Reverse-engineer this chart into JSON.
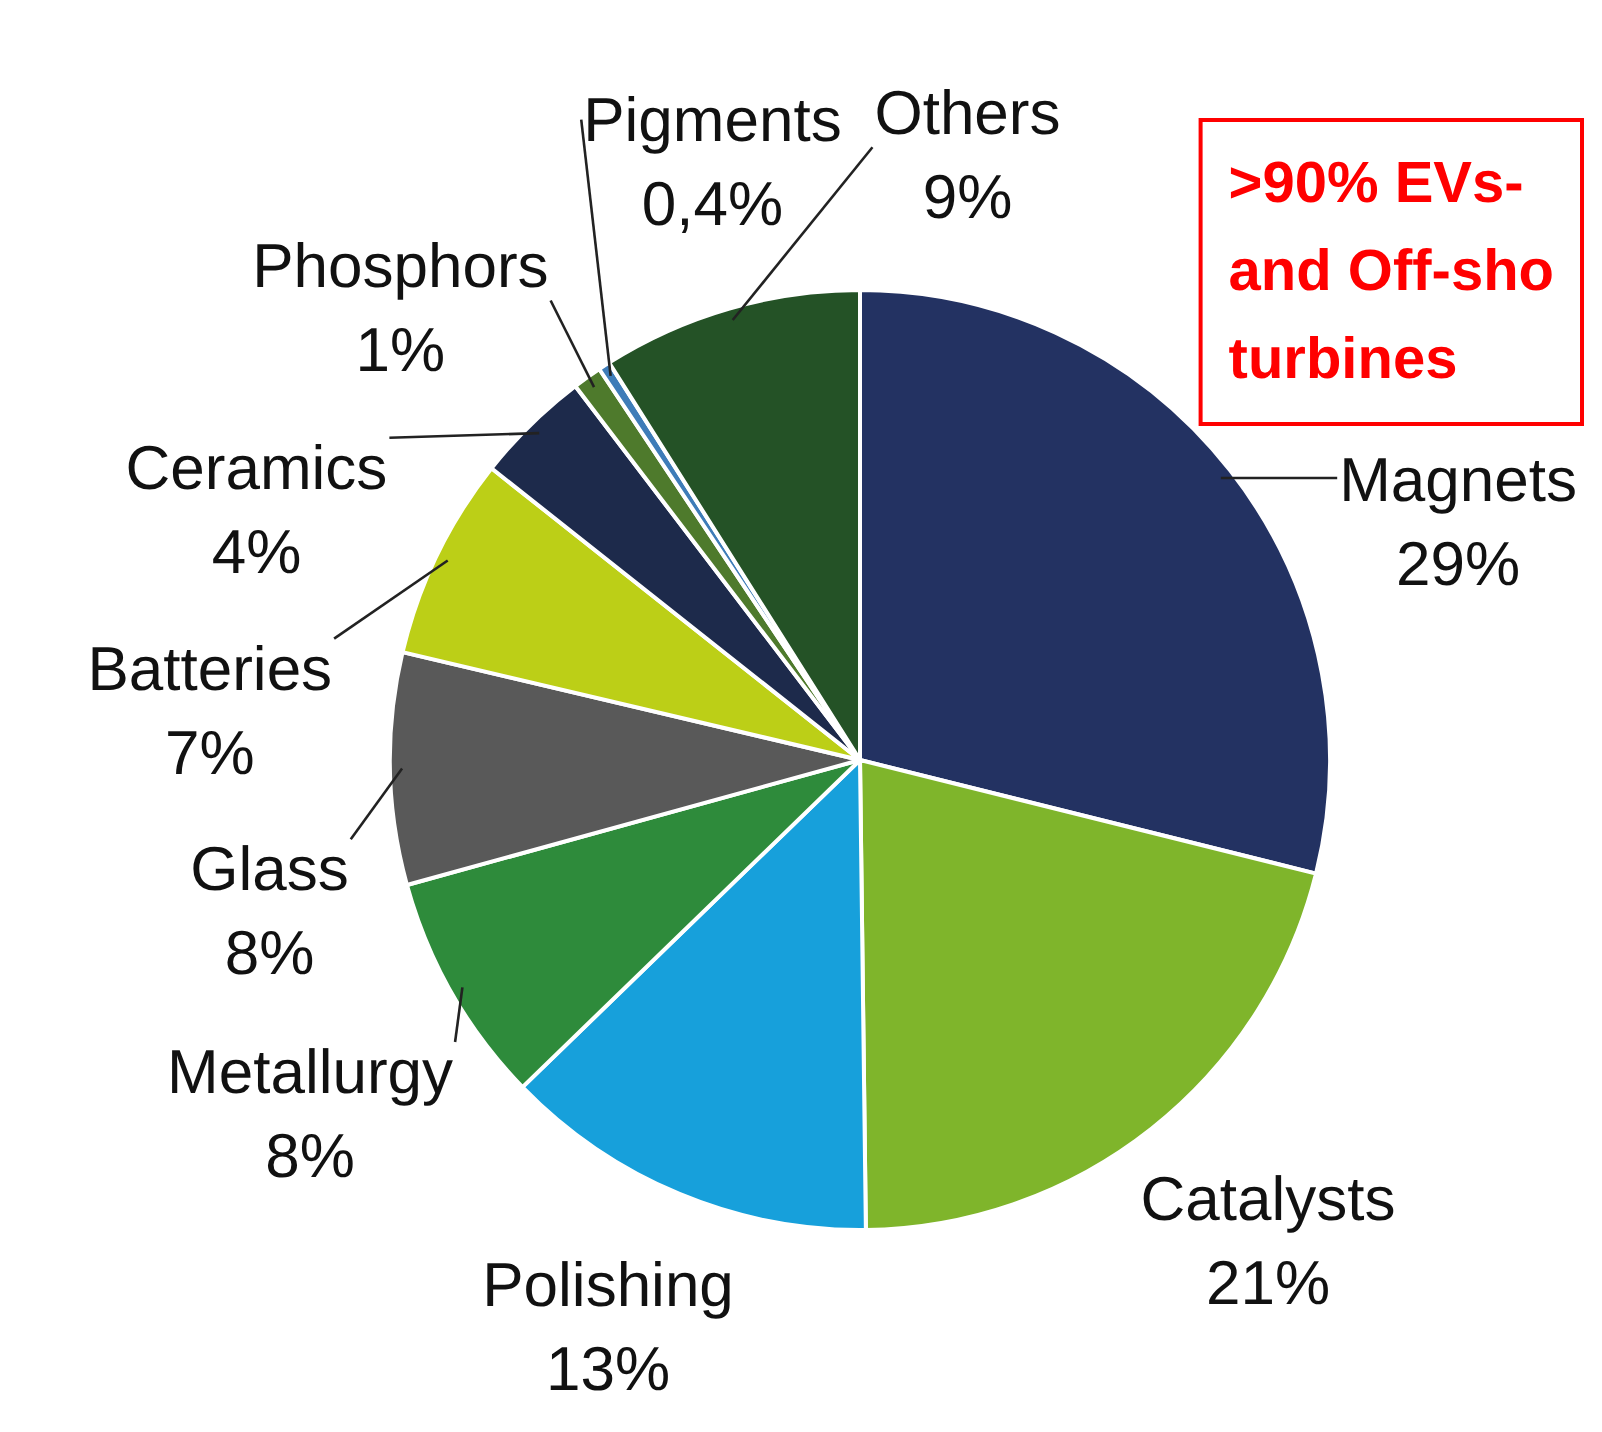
{
  "chart_data": {
    "type": "pie",
    "categories": [
      "Magnets",
      "Catalysts",
      "Polishing",
      "Metallurgy",
      "Glass",
      "Batteries",
      "Ceramics",
      "Phosphors",
      "Pigments",
      "Others"
    ],
    "values": [
      29,
      21,
      13,
      8,
      8,
      7,
      4,
      1,
      0.4,
      9
    ],
    "colors": [
      "#233262",
      "#7fb52b",
      "#17a0db",
      "#2e8b3b",
      "#595959",
      "#bccf17",
      "#1d2a4b",
      "#4e7a2c",
      "#3e7cb8",
      "#245226"
    ],
    "value_labels": [
      "29%",
      "21%",
      "13%",
      "8%",
      "8%",
      "7%",
      "4%",
      "1%",
      "0,4%",
      "9%"
    ],
    "annotations": [
      ">90% EVs-\nand Off-sho\nturbines"
    ]
  }
}
